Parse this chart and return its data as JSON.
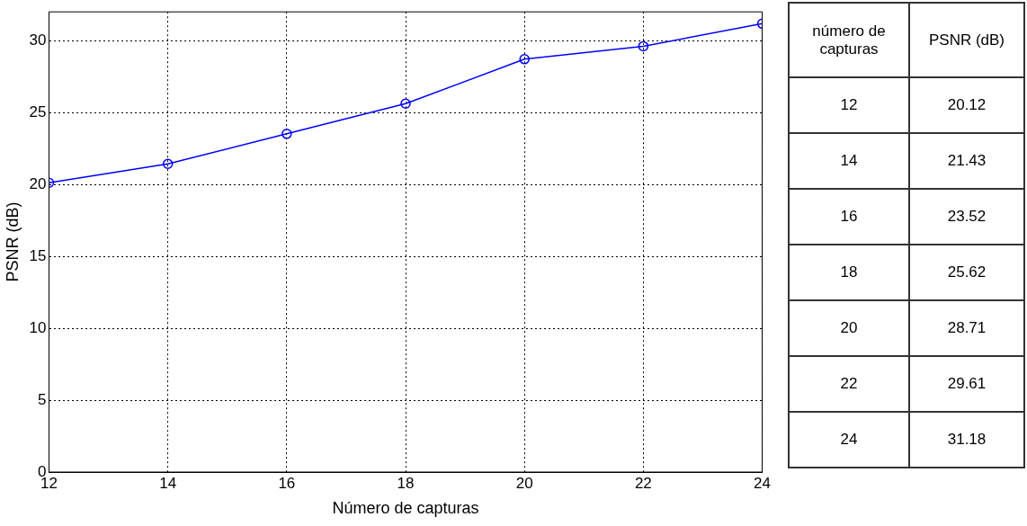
{
  "chart_data": [
    {
      "type": "line",
      "xlabel": "Número de capturas",
      "ylabel": "PSNR (dB)",
      "x": [
        12,
        14,
        16,
        18,
        20,
        22,
        24
      ],
      "series": [
        {
          "color": "#0000ff",
          "values": [
            20.12,
            21.43,
            23.52,
            25.62,
            28.71,
            29.61,
            31.18
          ]
        }
      ],
      "xlim": [
        12,
        24
      ],
      "xticks": [
        12,
        14,
        16,
        18,
        20,
        22,
        24
      ],
      "ylim": [
        0,
        32
      ],
      "yticks": [
        0,
        5,
        10,
        15,
        20,
        25,
        30
      ],
      "grid": true,
      "legend": false,
      "marker": "circle",
      "line_style": "solid"
    },
    {
      "type": "heatmap",
      "ylabel": "número de capturas",
      "categories": [
        "PSNR (dB)"
      ],
      "y_categories": [
        "12",
        "14",
        "16",
        "18",
        "20",
        "22",
        "24"
      ],
      "cells": [
        [
          20.12
        ],
        [
          21.43
        ],
        [
          23.52
        ],
        [
          25.62
        ],
        [
          28.71
        ],
        [
          29.61
        ],
        [
          31.18
        ]
      ],
      "data_labels": true
    }
  ]
}
